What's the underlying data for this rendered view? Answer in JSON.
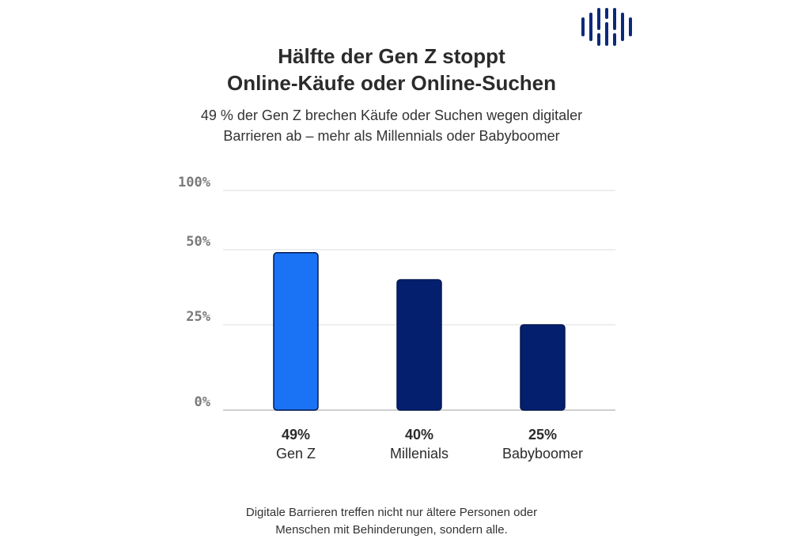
{
  "header": {
    "title_line1": "Hälfte der Gen Z stoppt",
    "title_line2": "Online-Käufe oder Online-Suchen",
    "subtitle_line1": "49 % der Gen Z brechen Käufe oder Suchen wegen digitaler",
    "subtitle_line2": "Barrieren ab – mehr als Millennials oder Babyboomer"
  },
  "footer": {
    "line1": "Digitale Barrieren treffen nicht nur ältere Personen oder",
    "line2": "Menschen mit Behinderungen, sondern alle."
  },
  "logo": {
    "icon": "brand-logo-icon",
    "color": "#0b2a7a"
  },
  "chart_data": {
    "type": "bar",
    "title": "Hälfte der Gen Z stoppt Online-Käufe oder Online-Suchen",
    "categories": [
      "Gen Z",
      "Millenials",
      "Babyboomer"
    ],
    "values": [
      49,
      40,
      25
    ],
    "value_labels": [
      "49%",
      "40%",
      "25%"
    ],
    "yticks": [
      0,
      25,
      50,
      100
    ],
    "ytick_labels": [
      "0%",
      "25%",
      "50%",
      "100%"
    ],
    "ylim": [
      0,
      100
    ],
    "xlabel": "",
    "ylabel": "",
    "colors": [
      "#1a73f5",
      "#041f6e",
      "#041f6e"
    ],
    "grid": true
  }
}
